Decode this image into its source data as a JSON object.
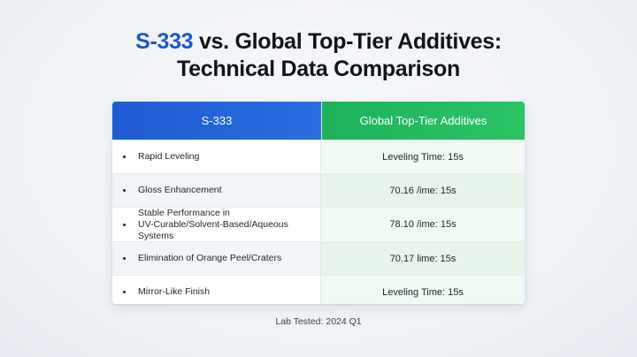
{
  "title": {
    "brand": "S-333",
    "line1_rest": " vs. Global Top-Tier Additives:",
    "line2": "Technical Data Comparison"
  },
  "table": {
    "headers": {
      "left": "S-333",
      "right": "Global Top-Tier Additives"
    },
    "rows": [
      {
        "feature": "Rapid Leveling",
        "feature_line2": "",
        "value": "Leveling Time: 15s"
      },
      {
        "feature": "Gloss Enhancement",
        "feature_line2": "",
        "value": "70.16 /ime: 15s"
      },
      {
        "feature": "Stable Performance in",
        "feature_line2": "UV-Curable/Solvent-Based/Aqueous Systems",
        "value": "78.10 /ime: 15s"
      },
      {
        "feature": "Elimination of Orange Peel/Craters",
        "feature_line2": "",
        "value": "70.17 lime: 15s"
      },
      {
        "feature": "Mirror-Like Finish",
        "feature_line2": "",
        "value": "Leveling Time: 15s"
      }
    ]
  },
  "footer": "Lab Tested: 2024 Q1",
  "colors": {
    "brand_blue": "#1a56c9",
    "header_blue": "#2a6ee0",
    "header_green": "#2bc466"
  }
}
